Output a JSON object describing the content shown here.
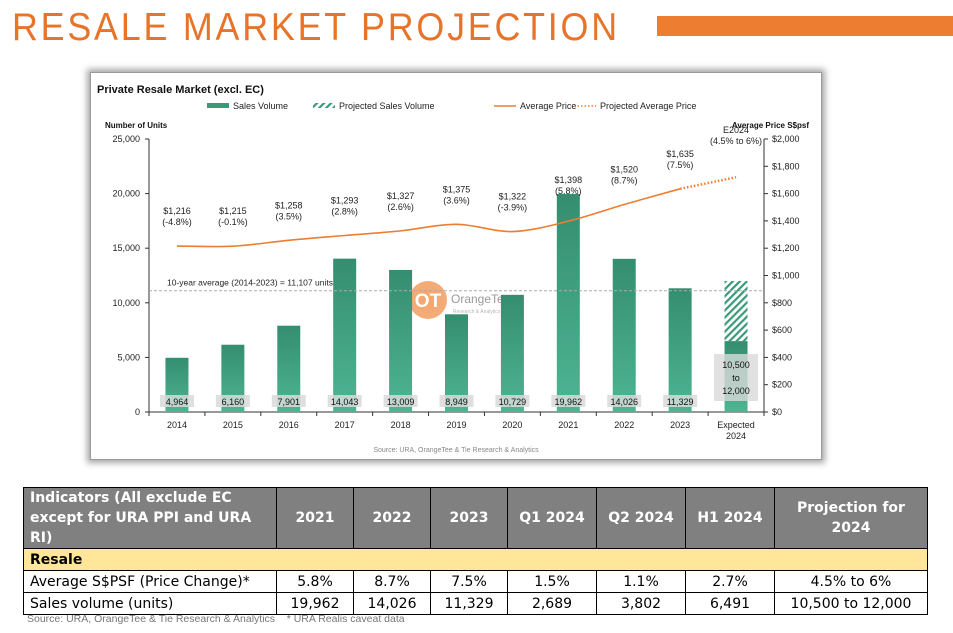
{
  "page": {
    "title": "RESALE MARKET PROJECTION",
    "accent_color": "#ED7D31",
    "footnote": "Source: URA, OrangeTee & Tie Research & Analytics    * URA Realis caveat data"
  },
  "chart_data": {
    "type": "bar",
    "title": "Private Resale Market (excl. EC)",
    "legend": {
      "placement": "top",
      "entries": [
        {
          "label": "Sales Volume",
          "style": "bar",
          "color": "#3A9A78"
        },
        {
          "label": "Projected Sales Volume",
          "style": "hatched-bar",
          "color": "#3A9A78"
        },
        {
          "label": "Average Price",
          "style": "line",
          "color": "#ED7D31"
        },
        {
          "label": "Projected Average Price",
          "style": "dotted-line",
          "color": "#ED7D31"
        }
      ]
    },
    "ylabel": "Number of Units",
    "y2label": "Average Price S$psf",
    "ylim": [
      0,
      25000
    ],
    "y2lim": [
      0,
      2000
    ],
    "yticks": [
      "0",
      "5,000",
      "10,000",
      "15,000",
      "20,000",
      "25,000"
    ],
    "y2ticks": [
      "$0",
      "$200",
      "$400",
      "$600",
      "$800",
      "$1,000",
      "$1,200",
      "$1,400",
      "$1,600",
      "$1,800",
      "$2,000"
    ],
    "categories": [
      "2014",
      "2015",
      "2016",
      "2017",
      "2018",
      "2019",
      "2020",
      "2021",
      "2022",
      "2023",
      "Expected 2024"
    ],
    "series": [
      {
        "name": "Sales Volume",
        "type": "bar",
        "values": [
          4964,
          6160,
          7901,
          14043,
          13009,
          8949,
          10729,
          19962,
          14026,
          11329,
          10500
        ],
        "labels": [
          "4,964",
          "6,160",
          "7,901",
          "14,043",
          "13,009",
          "8,949",
          "10,729",
          "19,962",
          "14,026",
          "11,329",
          "10,500\nto\n12,000"
        ]
      },
      {
        "name": "Projected Sales Volume",
        "type": "bar-hatched",
        "values": [
          null,
          null,
          null,
          null,
          null,
          null,
          null,
          null,
          null,
          null,
          12000
        ]
      },
      {
        "name": "Average Price",
        "type": "line",
        "axis": "y2",
        "values": [
          1216,
          1215,
          1258,
          1293,
          1327,
          1375,
          1322,
          1398,
          1520,
          1635,
          null
        ],
        "labels": [
          [
            "$1,216",
            "(-4.8%)"
          ],
          [
            "$1,215",
            "(-0.1%)"
          ],
          [
            "$1,258",
            "(3.5%)"
          ],
          [
            "$1,293",
            "(2.8%)"
          ],
          [
            "$1,327",
            "(2.6%)"
          ],
          [
            "$1,375",
            "(3.6%)"
          ],
          [
            "$1,322",
            "(-3.9%)"
          ],
          [
            "$1,398",
            "(5.8%)"
          ],
          [
            "$1,520",
            "(8.7%)"
          ],
          [
            "$1,635",
            "(7.5%)"
          ],
          [
            "E2024",
            "(4.5% to 6%)"
          ]
        ]
      },
      {
        "name": "Projected Average Price",
        "type": "line-dotted",
        "axis": "y2",
        "values": [
          null,
          null,
          null,
          null,
          null,
          null,
          null,
          null,
          null,
          1635,
          1720
        ]
      }
    ],
    "reference_line": {
      "value": 11107,
      "label": "10-year average (2014-2023) = 11,107 units"
    },
    "source": "Source: URA, OrangeTee & Tie Research & Analytics",
    "watermark": {
      "brand": "OrangeTee",
      "sub": "Research & Analytics",
      "mark": "OT"
    }
  },
  "table": {
    "headers": [
      "Indicators (All exclude EC except for URA PPI and URA RI)",
      "2021",
      "2022",
      "2023",
      "Q1 2024",
      "Q2 2024",
      "H1 2024",
      "Projection for 2024"
    ],
    "section": "Resale",
    "rows": [
      {
        "label": "Average S$PSF (Price Change)*",
        "values": [
          "5.8%",
          "8.7%",
          "7.5%",
          "1.5%",
          "1.1%",
          "2.7%",
          "4.5% to 6%"
        ]
      },
      {
        "label": "Sales volume (units)",
        "values": [
          "19,962",
          "14,026",
          "11,329",
          "2,689",
          "3,802",
          "6,491",
          "10,500 to 12,000"
        ]
      }
    ]
  }
}
